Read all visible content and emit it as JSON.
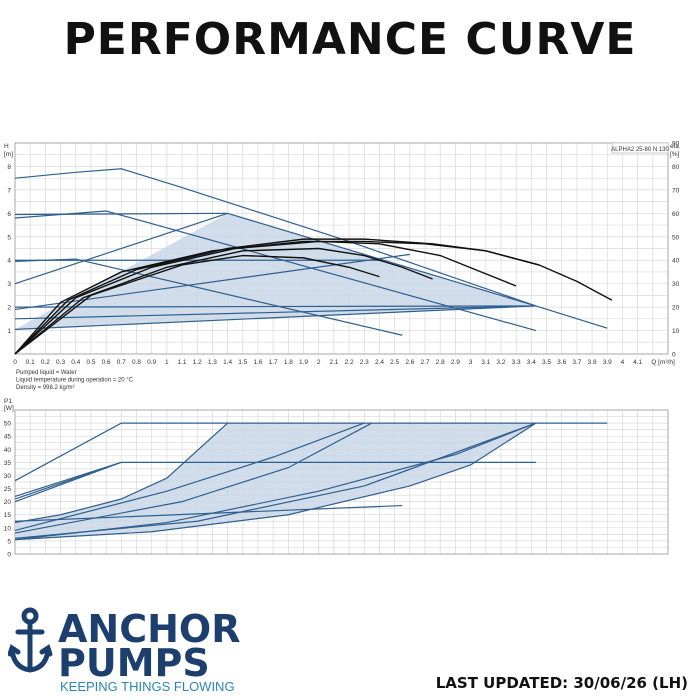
{
  "title": "PERFORMANCE CURVE",
  "footer": {
    "last_updated": "LAST UPDATED: 30/06/26 (LH)"
  },
  "brand": {
    "line1": "ANCHOR",
    "line2": "PUMPS",
    "tagline": "KEEPING THINGS FLOWING",
    "color": "#1c3f6e",
    "accent": "#2a86b8"
  },
  "colors": {
    "curve": "#2f5f8f",
    "fill": "#c9d7e6",
    "eff": "#111111",
    "grid": "#d9d9d9"
  },
  "chart_data": [
    {
      "type": "line",
      "model_label": "ALPHA2 25-80 N 130",
      "ylabel": "H [m]",
      "y2label": "eta [%]",
      "xlabel": "Q [m³/h]",
      "xlim": [
        0,
        4.3
      ],
      "ylim": [
        0,
        9
      ],
      "y2lim": [
        0,
        90
      ],
      "x_ticks": [
        0,
        0.1,
        0.2,
        0.3,
        0.4,
        0.5,
        0.6,
        0.7,
        0.8,
        0.9,
        1.0,
        1.1,
        1.2,
        1.3,
        1.4,
        1.5,
        1.6,
        1.7,
        1.8,
        1.9,
        2.0,
        2.1,
        2.2,
        2.3,
        2.4,
        2.5,
        2.6,
        2.7,
        2.8,
        2.9,
        3.0,
        3.1,
        3.2,
        3.3,
        3.4,
        3.5,
        3.6,
        3.7,
        3.8,
        3.9,
        4.0,
        4.1
      ],
      "y_ticks": [
        1,
        2,
        3,
        4,
        5,
        6,
        7,
        8
      ],
      "y2_ticks": [
        0,
        10,
        20,
        30,
        40,
        50,
        60,
        70,
        80,
        90
      ],
      "notes": [
        "Pumped liquid = Water",
        "Liquid temperature during operation = 20 °C",
        "Density = 998.2 kg/m³"
      ],
      "shaded_region": [
        [
          0,
          1.05
        ],
        [
          1.4,
          6.0
        ],
        [
          3.43,
          2.05
        ]
      ],
      "series": [
        {
          "values": [
            [
              0,
              7.5
            ],
            [
              0.4,
              7.75
            ],
            [
              0.7,
              7.9
            ],
            [
              1.1,
              7.1
            ],
            [
              2.2,
              4.8
            ],
            [
              3.43,
              2.05
            ],
            [
              3.9,
              1.1
            ]
          ]
        },
        {
          "values": [
            [
              0,
              5.8
            ],
            [
              0.6,
              6.1
            ],
            [
              3.43,
              1.0
            ]
          ]
        },
        {
          "values": [
            [
              0,
              5.95
            ],
            [
              1.4,
              6.0
            ],
            [
              3.43,
              2.05
            ]
          ]
        },
        {
          "values": [
            [
              0,
              3.95
            ],
            [
              0.4,
              4.05
            ],
            [
              2.55,
              0.8
            ]
          ]
        },
        {
          "values": [
            [
              0,
              4.0
            ],
            [
              2.4,
              4.0
            ]
          ]
        },
        {
          "values": [
            [
              0,
              1.05
            ],
            [
              3.43,
              2.05
            ]
          ]
        },
        {
          "values": [
            [
              0,
              3.0
            ],
            [
              1.4,
              6.0
            ]
          ]
        },
        {
          "values": [
            [
              0,
              1.9
            ],
            [
              2.6,
              4.25
            ]
          ]
        },
        {
          "values": [
            [
              0,
              1.5
            ],
            [
              3.43,
              2.05
            ]
          ]
        },
        {
          "values": [
            [
              0,
              2.0
            ],
            [
              3.43,
              2.05
            ]
          ]
        }
      ],
      "efficiency_curves": [
        {
          "values": [
            [
              0,
              0
            ],
            [
              0.3,
              22
            ],
            [
              0.7,
              35
            ],
            [
              1.3,
              44
            ],
            [
              1.9,
              48
            ],
            [
              2.3,
              48
            ],
            [
              2.7,
              47
            ],
            [
              3.1,
              44
            ],
            [
              3.45,
              38
            ],
            [
              3.7,
              31
            ],
            [
              3.93,
              23
            ]
          ]
        },
        {
          "values": [
            [
              0,
              0
            ],
            [
              0.35,
              23
            ],
            [
              0.8,
              36
            ],
            [
              1.4,
              45
            ],
            [
              1.9,
              49
            ],
            [
              2.3,
              49
            ],
            [
              2.75,
              47
            ],
            [
              3.1,
              44
            ],
            [
              3.45,
              38
            ]
          ]
        },
        {
          "values": [
            [
              0,
              0
            ],
            [
              0.4,
              24
            ],
            [
              0.9,
              37
            ],
            [
              1.45,
              45
            ],
            [
              2.0,
              48
            ],
            [
              2.4,
              47
            ],
            [
              2.8,
              42
            ],
            [
              3.3,
              29
            ]
          ]
        },
        {
          "values": [
            [
              0,
              0
            ],
            [
              0.45,
              24
            ],
            [
              1.0,
              37
            ],
            [
              1.5,
              44
            ],
            [
              2.0,
              45
            ],
            [
              2.3,
              42
            ],
            [
              2.55,
              37
            ],
            [
              2.75,
              32
            ]
          ]
        },
        {
          "values": [
            [
              0,
              0
            ],
            [
              0.5,
              25
            ],
            [
              1.1,
              38
            ],
            [
              1.5,
              42
            ],
            [
              1.9,
              41
            ],
            [
              2.2,
              37
            ],
            [
              2.4,
              33
            ]
          ]
        }
      ]
    },
    {
      "type": "line",
      "ylabel": "P1 [W]",
      "xlim": [
        0,
        4.3
      ],
      "ylim": [
        0,
        55
      ],
      "y_ticks": [
        0,
        5,
        10,
        15,
        20,
        25,
        30,
        35,
        40,
        45,
        50
      ],
      "shaded_region": [
        [
          0,
          5.5
        ],
        [
          1.4,
          50
        ],
        [
          3.43,
          50
        ],
        [
          0,
          5.5
        ]
      ],
      "series": [
        {
          "values": [
            [
              0,
              28
            ],
            [
              0.7,
              50
            ],
            [
              3.9,
              50
            ]
          ]
        },
        {
          "values": [
            [
              0,
              21
            ],
            [
              0.7,
              35
            ],
            [
              3.43,
              35
            ]
          ]
        },
        {
          "values": [
            [
              0,
              20
            ],
            [
              0.7,
              35
            ]
          ]
        },
        {
          "values": [
            [
              0,
              22
            ],
            [
              0.7,
              35
            ]
          ]
        },
        {
          "values": [
            [
              0,
              12.5
            ],
            [
              2.55,
              18.5
            ]
          ]
        },
        {
          "values": [
            [
              0,
              12
            ],
            [
              0.3,
              15
            ],
            [
              0.7,
              21
            ],
            [
              1.0,
              29
            ],
            [
              1.4,
              50
            ]
          ]
        },
        {
          "values": [
            [
              0,
              9
            ],
            [
              1.0,
              24
            ],
            [
              1.7,
              37
            ],
            [
              2.3,
              50
            ]
          ]
        },
        {
          "values": [
            [
              0,
              8
            ],
            [
              1.1,
              20
            ],
            [
              1.8,
              33
            ],
            [
              2.35,
              50
            ]
          ]
        },
        {
          "values": [
            [
              0,
              5.5
            ],
            [
              1.0,
              12
            ],
            [
              2.0,
              24
            ],
            [
              2.9,
              38
            ],
            [
              3.43,
              50
            ]
          ]
        },
        {
          "values": [
            [
              0,
              6
            ],
            [
              1.2,
              12.5
            ],
            [
              2.3,
              26
            ],
            [
              3.43,
              50
            ]
          ]
        },
        {
          "values": [
            [
              0,
              5.5
            ],
            [
              0.9,
              8.5
            ],
            [
              1.8,
              15
            ],
            [
              2.6,
              26
            ],
            [
              3.0,
              34
            ],
            [
              3.43,
              50
            ]
          ]
        }
      ]
    }
  ]
}
